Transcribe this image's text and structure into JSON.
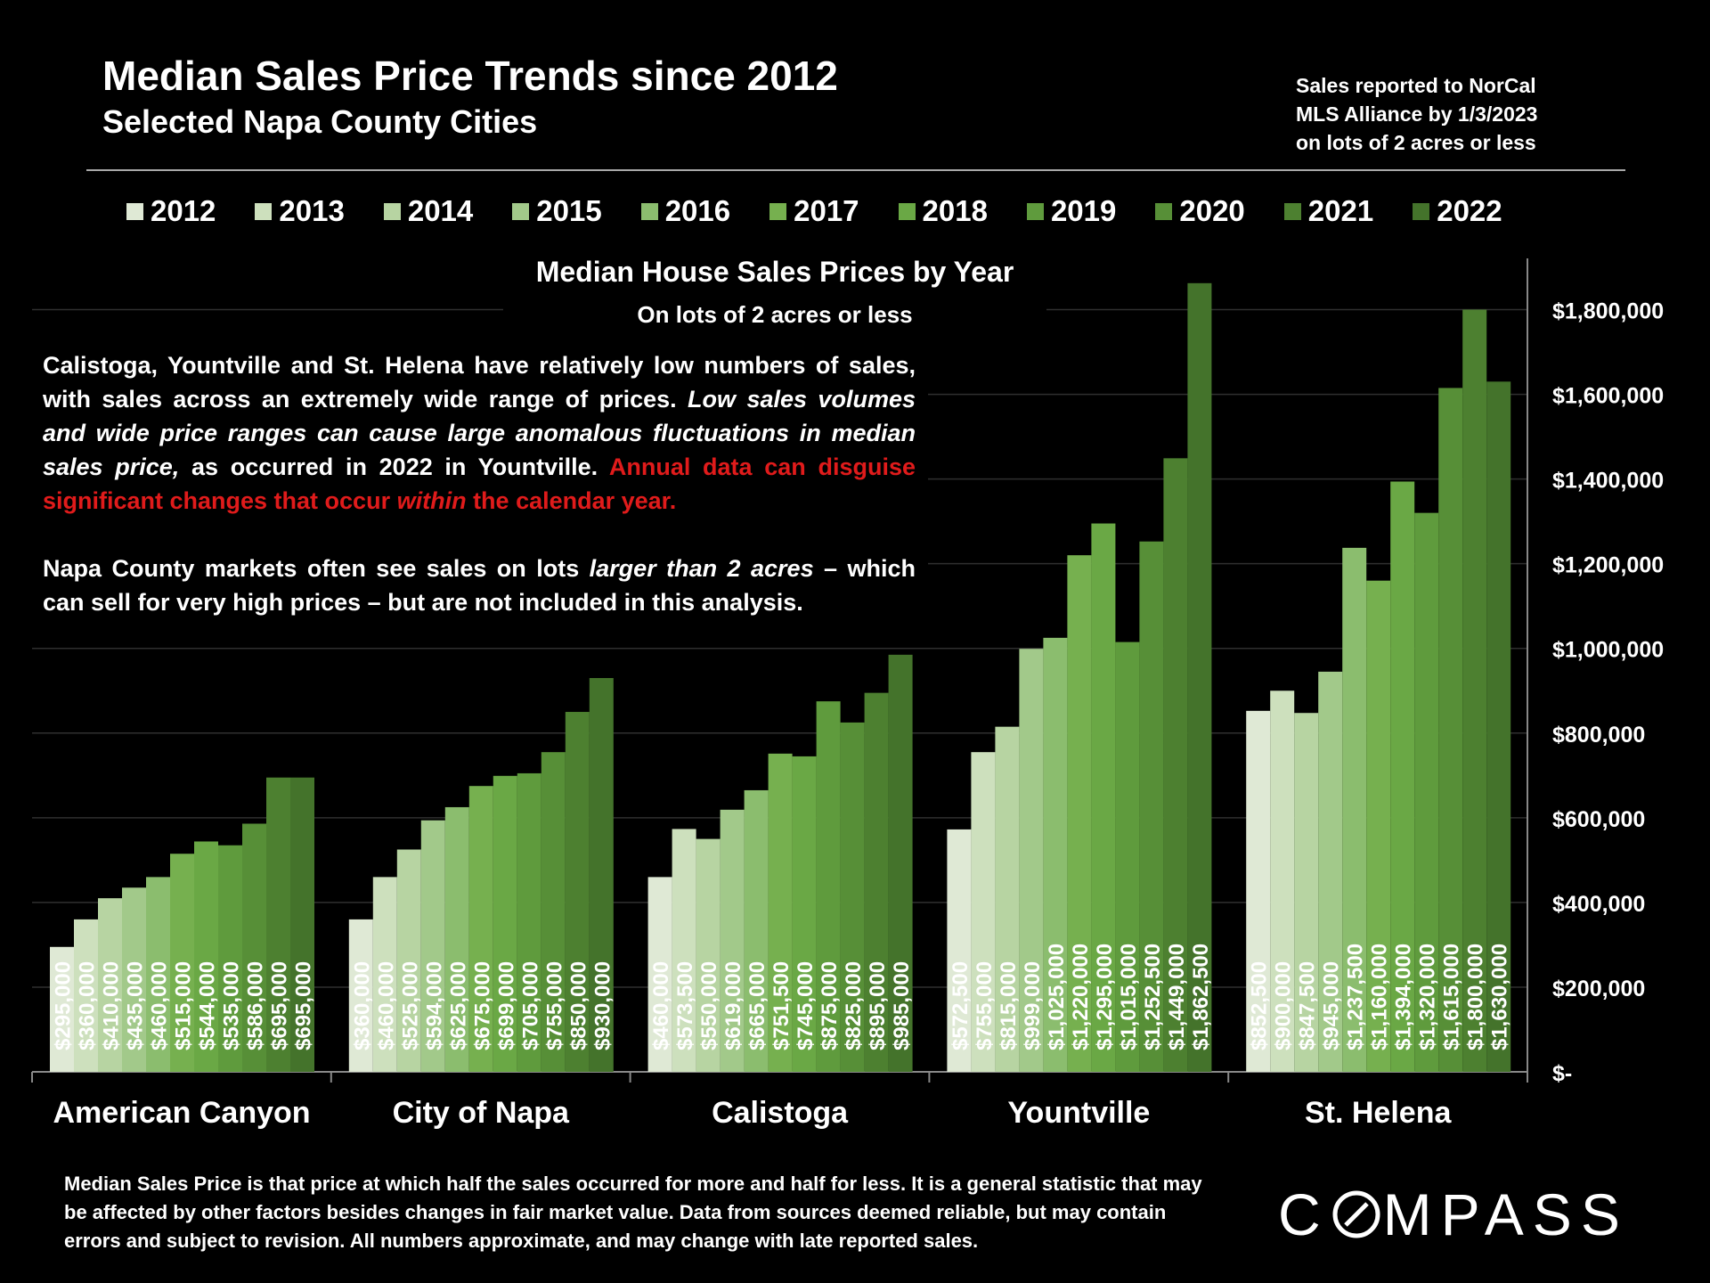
{
  "header": {
    "title": "Median Sales Price Trends since 2012",
    "subtitle": "Selected Napa County Cities",
    "source_lines": [
      "Sales reported to NorCal",
      "MLS Alliance by 1/3/2023",
      "on lots of 2 acres or less"
    ]
  },
  "legend": {
    "items": [
      "2012",
      "2013",
      "2014",
      "2015",
      "2016",
      "2017",
      "2018",
      "2019",
      "2020",
      "2021",
      "2022"
    ]
  },
  "colors": [
    "#dfe9d5",
    "#cde0bd",
    "#b7d4a2",
    "#a2c98a",
    "#8bbd6e",
    "#76b04f",
    "#6aa845",
    "#5f9b3d",
    "#578f37",
    "#4d8030",
    "#44732b"
  ],
  "note": {
    "p1_plain1": "Calistoga, Yountville and St.  Helena have relatively low numbers of sales, with sales across an extremely wide range of prices. ",
    "p1_italic": "Low sales volumes and wide price ranges can cause large anomalous fluctuations in median sales price,",
    "p1_plain2": " as occurred in 2022 in Yountville. ",
    "p1_red1": "Annual data can disguise significant changes that occur ",
    "p1_red_italic": "within",
    "p1_red2": " the calendar year.",
    "p2_plain1": "Napa County markets often see sales on lots ",
    "p2_italic": "larger than 2 acres",
    "p2_plain2": " – which can sell for very high prices – but are not included in this analysis."
  },
  "chart_data": {
    "type": "bar",
    "title": "Median House Sales Prices by Year",
    "subtitle": "On lots of 2 acres or less",
    "categories": [
      "American Canyon",
      "City of Napa",
      "Calistoga",
      "Yountville",
      "St. Helena"
    ],
    "series_names": [
      "2012",
      "2013",
      "2014",
      "2015",
      "2016",
      "2017",
      "2018",
      "2019",
      "2020",
      "2021",
      "2022"
    ],
    "values": [
      [
        295000,
        360000,
        410000,
        435000,
        460000,
        515000,
        544000,
        535000,
        586000,
        695000,
        695000
      ],
      [
        360000,
        460000,
        525000,
        594000,
        625000,
        675000,
        699000,
        705000,
        755000,
        850000,
        930000
      ],
      [
        460000,
        573500,
        550000,
        619000,
        665000,
        751500,
        745000,
        875000,
        825000,
        895000,
        985000
      ],
      [
        572500,
        755000,
        815000,
        999000,
        1025000,
        1220000,
        1295000,
        1015000,
        1252500,
        1449000,
        1862500
      ],
      [
        852500,
        900000,
        847500,
        945000,
        1237500,
        1160000,
        1394000,
        1320000,
        1615000,
        1800000,
        1630000
      ]
    ],
    "labels": [
      [
        "$295,000",
        "$360,000",
        "$410,000",
        "$435,000",
        "$460,000",
        "$515,000",
        "$544,000",
        "$535,000",
        "$586,000",
        "$695,000",
        "$695,000"
      ],
      [
        "$360,000",
        "$460,000",
        "$525,000",
        "$594,000",
        "$625,000",
        "$675,000",
        "$699,000",
        "$705,000",
        "$755,000",
        "$850,000",
        "$930,000"
      ],
      [
        "$460,000",
        "$573,500",
        "$550,000",
        "$619,000",
        "$665,000",
        "$751,500",
        "$745,000",
        "$875,000",
        "$825,000",
        "$895,000",
        "$985,000"
      ],
      [
        "$572,500",
        "$755,000",
        "$815,000",
        "$999,000",
        "$1,025,000",
        "$1,220,000",
        "$1,295,000",
        "$1,015,000",
        "$1,252,500",
        "$1,449,000",
        "$1,862,500"
      ],
      [
        "$852,500",
        "$900,000",
        "$847,500",
        "$945,000",
        "$1,237,500",
        "$1,160,000",
        "$1,394,000",
        "$1,320,000",
        "$1,615,000",
        "$1,800,000",
        "$1,630,000"
      ]
    ],
    "ylim": [
      0,
      1900000
    ],
    "yticks": [
      0,
      200000,
      400000,
      600000,
      800000,
      1000000,
      1200000,
      1400000,
      1600000,
      1800000
    ],
    "ytick_labels": [
      "$-",
      "$200,000",
      "$400,000",
      "$600,000",
      "$800,000",
      "$1,000,000",
      "$1,200,000",
      "$1,400,000",
      "$1,600,000",
      "$1,800,000"
    ],
    "y_axis_side": "right",
    "grid": true
  },
  "footnote": "Median Sales Price is that price at which half the sales occurred for more and half for less. It is a general statistic that may be affected by other factors besides changes in fair market value. Data from sources deemed reliable, but may contain errors and subject to revision.  All numbers approximate, and may change with late reported sales.",
  "brand": {
    "left": "C",
    "right": "MPASS",
    "icon": "compass-o-icon"
  }
}
